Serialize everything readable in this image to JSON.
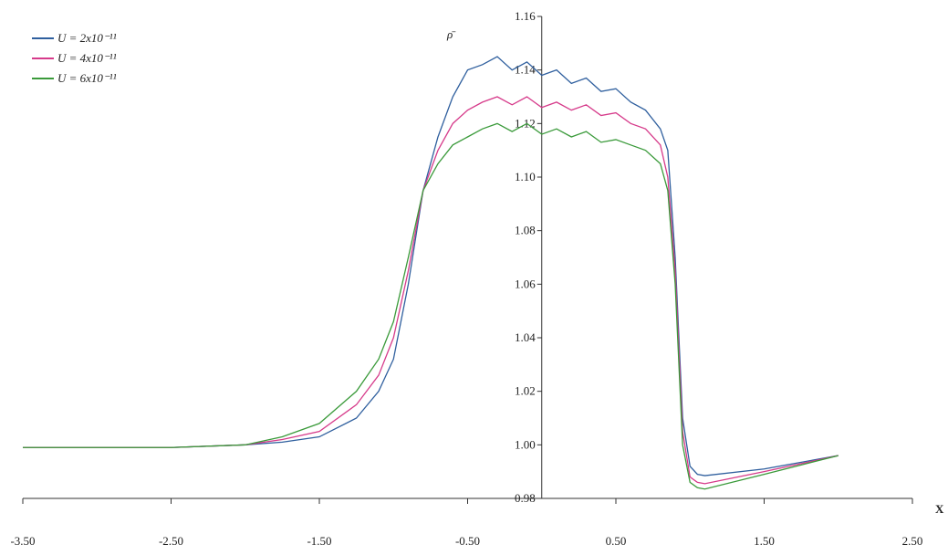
{
  "chart_data": {
    "type": "line",
    "x_label": "X",
    "y_label": "ρ̄",
    "x": [
      -3.5,
      -3,
      -2.5,
      -2,
      -1.75,
      -1.5,
      -1.25,
      -1.1,
      -1,
      -0.9,
      -0.8,
      -0.7,
      -0.6,
      -0.5,
      -0.4,
      -0.3,
      -0.2,
      -0.1,
      0,
      0.1,
      0.2,
      0.3,
      0.4,
      0.5,
      0.6,
      0.7,
      0.8,
      0.85,
      0.9,
      0.95,
      1.0,
      1.05,
      1.1,
      1.5,
      2.0
    ],
    "series": [
      {
        "name": "U = 2x10⁻¹¹",
        "color": "#2f5f9e",
        "values": [
          0.999,
          0.999,
          0.999,
          1.0,
          1.001,
          1.003,
          1.01,
          1.02,
          1.032,
          1.06,
          1.095,
          1.115,
          1.13,
          1.14,
          1.142,
          1.145,
          1.14,
          1.143,
          1.138,
          1.14,
          1.135,
          1.137,
          1.132,
          1.133,
          1.128,
          1.125,
          1.118,
          1.11,
          1.07,
          1.01,
          0.992,
          0.989,
          0.9885,
          0.991,
          0.996
        ]
      },
      {
        "name": "U = 4x10⁻¹¹",
        "color": "#d63a8a",
        "values": [
          0.999,
          0.999,
          0.999,
          1.0,
          1.002,
          1.005,
          1.015,
          1.026,
          1.04,
          1.065,
          1.095,
          1.11,
          1.12,
          1.125,
          1.128,
          1.13,
          1.127,
          1.13,
          1.126,
          1.128,
          1.125,
          1.127,
          1.123,
          1.124,
          1.12,
          1.118,
          1.112,
          1.1,
          1.065,
          1.005,
          0.988,
          0.986,
          0.9855,
          0.99,
          0.996
        ]
      },
      {
        "name": "U = 6x10⁻¹¹",
        "color": "#3a9a3a",
        "values": [
          0.999,
          0.999,
          0.999,
          1.0,
          1.003,
          1.008,
          1.02,
          1.032,
          1.046,
          1.07,
          1.095,
          1.105,
          1.112,
          1.115,
          1.118,
          1.12,
          1.117,
          1.12,
          1.116,
          1.118,
          1.115,
          1.117,
          1.113,
          1.114,
          1.112,
          1.11,
          1.105,
          1.095,
          1.06,
          1.0,
          0.986,
          0.984,
          0.9835,
          0.989,
          0.996
        ]
      }
    ],
    "xlim": [
      -3.5,
      2.5
    ],
    "xticks": [
      {
        "value": -3.5,
        "label": "-3.50"
      },
      {
        "value": -2.5,
        "label": "-2.50"
      },
      {
        "value": -1.5,
        "label": "-1.50"
      },
      {
        "value": -0.5,
        "label": "-0.50"
      },
      {
        "value": 0.5,
        "label": "0.50"
      },
      {
        "value": 1.5,
        "label": "1.50"
      },
      {
        "value": 2.5,
        "label": "2.50"
      }
    ],
    "ylim": [
      0.98,
      1.16
    ],
    "yticks": [
      {
        "value": 0.98,
        "label": "0.98"
      },
      {
        "value": 1.0,
        "label": "1.00"
      },
      {
        "value": 1.02,
        "label": "1.02"
      },
      {
        "value": 1.04,
        "label": "1.04"
      },
      {
        "value": 1.06,
        "label": "1.06"
      },
      {
        "value": 1.08,
        "label": "1.08"
      },
      {
        "value": 1.1,
        "label": "1.10"
      },
      {
        "value": 1.12,
        "label": "1.12"
      },
      {
        "value": 1.14,
        "label": "1.14"
      },
      {
        "value": 1.16,
        "label": "1.16"
      }
    ],
    "legend": "upper-left"
  }
}
